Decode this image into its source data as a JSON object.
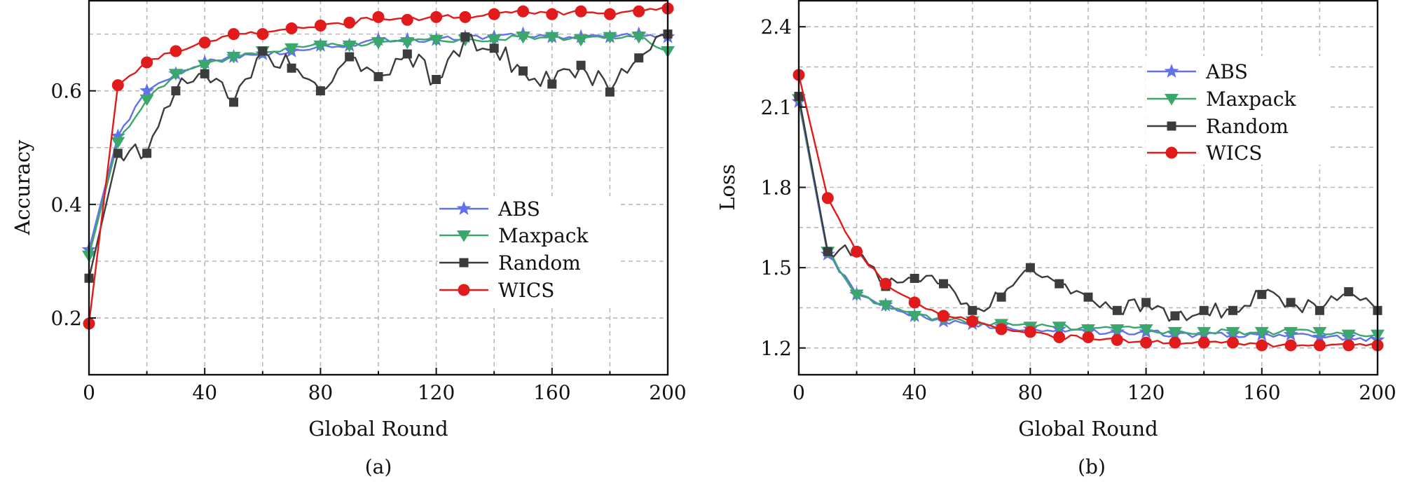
{
  "chart_data": [
    {
      "type": "line",
      "panel": "(a)",
      "xlabel": "Global Round",
      "ylabel": "Accuracy",
      "xlim": [
        0,
        200
      ],
      "ylim": [
        0.1,
        0.76
      ],
      "xticks": [
        0,
        40,
        80,
        120,
        160,
        200
      ],
      "yticks": [
        0.2,
        0.4,
        0.6
      ],
      "grid": true,
      "legend_position": "center-right",
      "x": [
        0,
        10,
        20,
        30,
        40,
        50,
        60,
        70,
        80,
        90,
        100,
        110,
        120,
        130,
        140,
        150,
        160,
        170,
        180,
        190,
        200
      ],
      "series": [
        {
          "name": "ABS",
          "color": "#6272e8",
          "marker": "star",
          "values": [
            0.32,
            0.52,
            0.6,
            0.63,
            0.65,
            0.66,
            0.665,
            0.67,
            0.68,
            0.68,
            0.69,
            0.69,
            0.69,
            0.695,
            0.695,
            0.7,
            0.695,
            0.695,
            0.695,
            0.7,
            0.695
          ]
        },
        {
          "name": "Maxpack",
          "color": "#3aa76d",
          "marker": "triangle-down",
          "values": [
            0.31,
            0.51,
            0.585,
            0.63,
            0.645,
            0.66,
            0.67,
            0.675,
            0.68,
            0.68,
            0.685,
            0.685,
            0.69,
            0.69,
            0.69,
            0.695,
            0.695,
            0.69,
            0.695,
            0.695,
            0.67
          ]
        },
        {
          "name": "Random",
          "color": "#3c3c3c",
          "marker": "square",
          "values": [
            0.27,
            0.49,
            0.49,
            0.6,
            0.63,
            0.58,
            0.67,
            0.64,
            0.6,
            0.66,
            0.625,
            0.665,
            0.62,
            0.695,
            0.675,
            0.635,
            0.612,
            0.645,
            0.598,
            0.658,
            0.7
          ]
        },
        {
          "name": "WICS",
          "color": "#e11b1b",
          "marker": "circle",
          "values": [
            0.19,
            0.61,
            0.65,
            0.67,
            0.685,
            0.7,
            0.7,
            0.71,
            0.715,
            0.72,
            0.73,
            0.725,
            0.73,
            0.73,
            0.735,
            0.74,
            0.735,
            0.74,
            0.735,
            0.74,
            0.745
          ]
        }
      ]
    },
    {
      "type": "line",
      "panel": "(b)",
      "xlabel": "Global Round",
      "ylabel": "Loss",
      "xlim": [
        0,
        200
      ],
      "ylim": [
        1.1,
        2.5
      ],
      "xticks": [
        0,
        40,
        80,
        120,
        160,
        200
      ],
      "yticks": [
        1.2,
        1.5,
        1.8,
        2.1,
        2.4
      ],
      "grid": true,
      "legend_position": "top-right",
      "x": [
        0,
        10,
        20,
        30,
        40,
        50,
        60,
        70,
        80,
        90,
        100,
        110,
        120,
        130,
        140,
        150,
        160,
        170,
        180,
        190,
        200
      ],
      "series": [
        {
          "name": "ABS",
          "color": "#6272e8",
          "marker": "star",
          "values": [
            2.12,
            1.55,
            1.4,
            1.36,
            1.32,
            1.3,
            1.29,
            1.28,
            1.27,
            1.27,
            1.26,
            1.26,
            1.26,
            1.25,
            1.25,
            1.25,
            1.25,
            1.25,
            1.24,
            1.24,
            1.23
          ]
        },
        {
          "name": "Maxpack",
          "color": "#3aa76d",
          "marker": "triangle-down",
          "values": [
            2.13,
            1.56,
            1.4,
            1.36,
            1.32,
            1.31,
            1.3,
            1.29,
            1.28,
            1.28,
            1.27,
            1.27,
            1.27,
            1.26,
            1.26,
            1.26,
            1.26,
            1.26,
            1.26,
            1.25,
            1.25
          ]
        },
        {
          "name": "Random",
          "color": "#3c3c3c",
          "marker": "square",
          "values": [
            2.14,
            1.56,
            1.56,
            1.43,
            1.46,
            1.44,
            1.34,
            1.39,
            1.5,
            1.44,
            1.39,
            1.34,
            1.37,
            1.32,
            1.34,
            1.34,
            1.4,
            1.37,
            1.34,
            1.41,
            1.34
          ]
        },
        {
          "name": "WICS",
          "color": "#e11b1b",
          "marker": "circle",
          "values": [
            2.22,
            1.76,
            1.56,
            1.44,
            1.37,
            1.32,
            1.3,
            1.27,
            1.26,
            1.24,
            1.24,
            1.23,
            1.22,
            1.22,
            1.22,
            1.22,
            1.21,
            1.21,
            1.21,
            1.21,
            1.21
          ]
        }
      ]
    }
  ]
}
